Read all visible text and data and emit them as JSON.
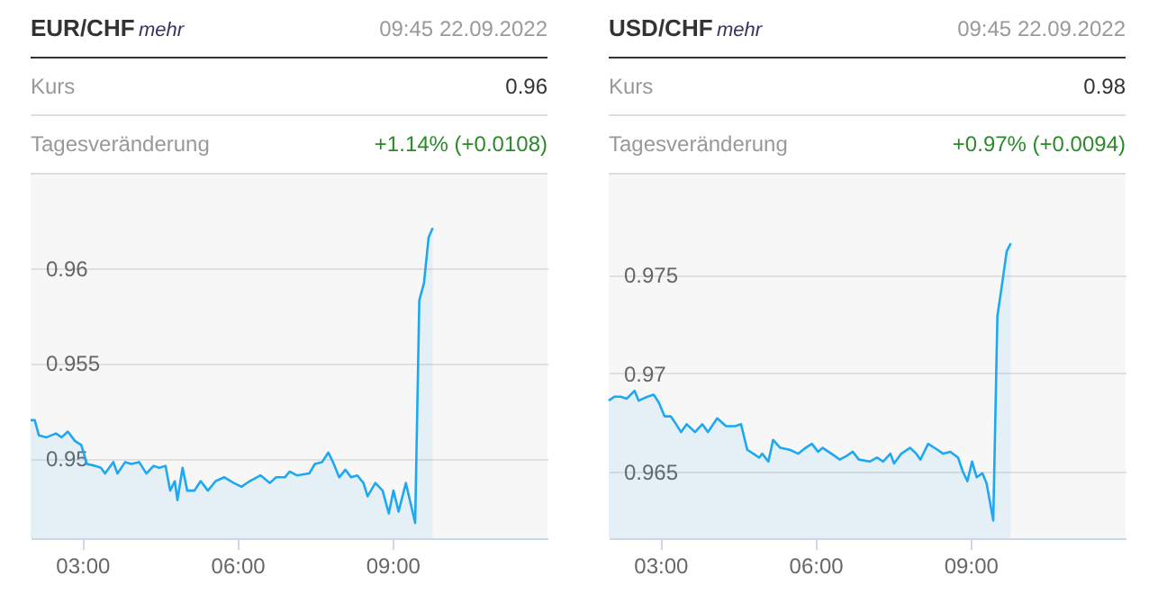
{
  "chart_data": [
    {
      "type": "area",
      "title": "EUR/CHF",
      "annotations": [
        "mehr",
        "09:45 22.09.2022",
        "Kurs",
        "0.96",
        "Tagesveränderung",
        "+1.14% (+0.0108)"
      ],
      "x": [
        2.0,
        2.08,
        2.16,
        2.31,
        2.49,
        2.6,
        2.72,
        2.86,
        2.98,
        3.09,
        3.25,
        3.36,
        3.44,
        3.6,
        3.68,
        3.83,
        3.95,
        4.1,
        4.24,
        4.38,
        4.49,
        4.61,
        4.7,
        4.79,
        4.84,
        4.94,
        5.03,
        5.17,
        5.29,
        5.43,
        5.58,
        5.75,
        5.93,
        6.08,
        6.24,
        6.45,
        6.63,
        6.75,
        6.92,
        7.01,
        7.15,
        7.39,
        7.5,
        7.64,
        7.76,
        7.85,
        7.97,
        8.09,
        8.2,
        8.32,
        8.44,
        8.52,
        8.67,
        8.81,
        8.93,
        9.02,
        9.12,
        9.26,
        9.44,
        9.52,
        9.61,
        9.7,
        9.78
      ],
      "series": [
        {
          "color": "#1ea7f2",
          "values": [
            0.952,
            0.952,
            0.9512,
            0.9511,
            0.9513,
            0.9511,
            0.9514,
            0.9509,
            0.9507,
            0.9497,
            0.9496,
            0.9495,
            0.9492,
            0.9498,
            0.9492,
            0.9498,
            0.9497,
            0.9498,
            0.9492,
            0.9496,
            0.9495,
            0.9496,
            0.9483,
            0.9488,
            0.9478,
            0.9495,
            0.9483,
            0.9483,
            0.9488,
            0.9483,
            0.9488,
            0.949,
            0.9487,
            0.9485,
            0.9488,
            0.9491,
            0.9487,
            0.949,
            0.949,
            0.9493,
            0.9491,
            0.9492,
            0.9497,
            0.9498,
            0.9503,
            0.9498,
            0.949,
            0.9494,
            0.949,
            0.9491,
            0.9487,
            0.948,
            0.9487,
            0.9483,
            0.9471,
            0.9483,
            0.9472,
            0.9487,
            0.9466,
            0.9583,
            0.9592,
            0.9616,
            0.9621
          ]
        }
      ],
      "xlim": [
        2,
        12
      ],
      "xticks": [
        {
          "value": 3,
          "label": "03:00"
        },
        {
          "value": 6,
          "label": "06:00"
        },
        {
          "value": 9,
          "label": "09:00"
        }
      ],
      "ylim": [
        0.9458,
        0.9649
      ],
      "yticks": [
        0.95,
        0.955,
        0.96
      ],
      "grid": "y"
    },
    {
      "type": "area",
      "title": "USD/CHF",
      "annotations": [
        "mehr",
        "09:45 22.09.2022",
        "Kurs",
        "0.98",
        "Tagesveränderung",
        "+0.97% (+0.0094)"
      ],
      "x": [
        2.0,
        2.11,
        2.23,
        2.35,
        2.5,
        2.58,
        2.75,
        2.87,
        2.97,
        3.08,
        3.2,
        3.28,
        3.4,
        3.51,
        3.67,
        3.81,
        3.92,
        4.1,
        4.27,
        4.45,
        4.56,
        4.68,
        4.8,
        4.91,
        4.97,
        5.09,
        5.18,
        5.32,
        5.5,
        5.67,
        5.81,
        5.93,
        6.05,
        6.14,
        6.31,
        6.47,
        6.61,
        6.72,
        6.84,
        7.05,
        7.19,
        7.31,
        7.45,
        7.52,
        7.66,
        7.83,
        7.95,
        8.03,
        8.18,
        8.36,
        8.47,
        8.61,
        8.76,
        8.85,
        8.94,
        9.03,
        9.12,
        9.23,
        9.31,
        9.44,
        9.52,
        9.62,
        9.7,
        9.78
      ],
      "series": [
        {
          "color": "#1ea7f2",
          "values": [
            0.9686,
            0.9688,
            0.9688,
            0.9687,
            0.9691,
            0.9686,
            0.9688,
            0.9689,
            0.9685,
            0.9678,
            0.9678,
            0.9675,
            0.967,
            0.9674,
            0.967,
            0.9674,
            0.967,
            0.9677,
            0.9673,
            0.9673,
            0.9674,
            0.9661,
            0.9659,
            0.9657,
            0.9659,
            0.9655,
            0.9666,
            0.9662,
            0.9661,
            0.9659,
            0.9662,
            0.9664,
            0.966,
            0.9662,
            0.9659,
            0.9656,
            0.9658,
            0.966,
            0.9656,
            0.9655,
            0.9657,
            0.9655,
            0.9659,
            0.9654,
            0.9659,
            0.9662,
            0.9659,
            0.9656,
            0.9664,
            0.9661,
            0.9659,
            0.966,
            0.9657,
            0.965,
            0.9645,
            0.9655,
            0.9647,
            0.9649,
            0.9644,
            0.9625,
            0.9729,
            0.9747,
            0.9762,
            0.9766
          ]
        }
      ],
      "xlim": [
        2,
        12
      ],
      "xticks": [
        {
          "value": 3,
          "label": "03:00"
        },
        {
          "value": 6,
          "label": "06:00"
        },
        {
          "value": 9,
          "label": "09:00"
        }
      ],
      "ylim": [
        0.9616,
        0.9801
      ],
      "yticks": [
        0.965,
        0.97,
        0.975
      ],
      "grid": "y"
    }
  ]
}
